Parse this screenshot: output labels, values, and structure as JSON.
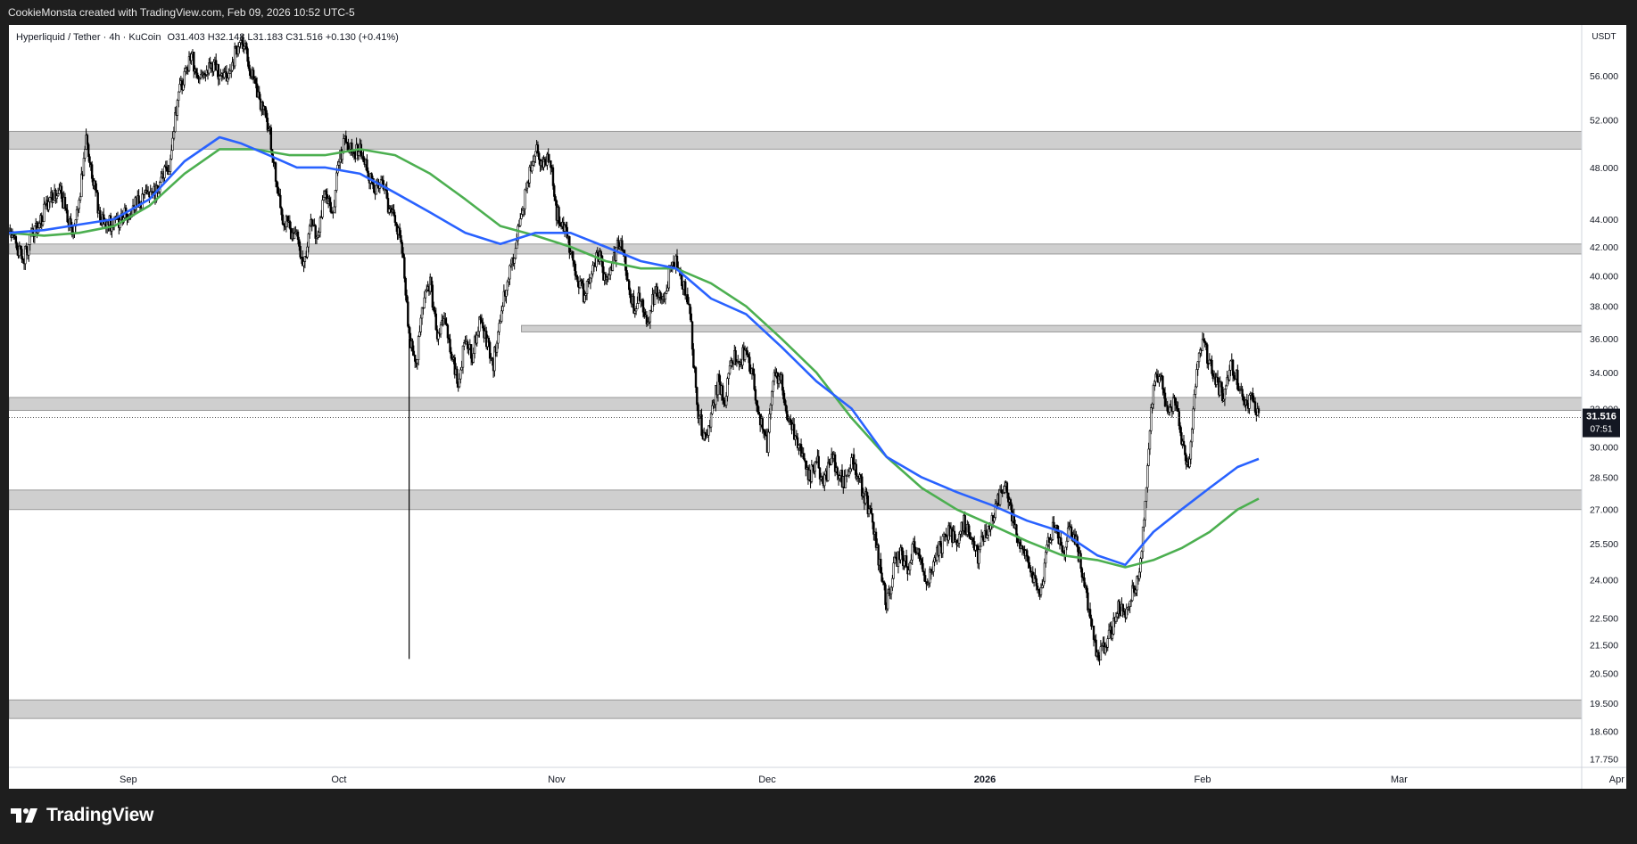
{
  "header": {
    "credit": "CookieMonsta created with TradingView.com, Feb 09, 2026 10:52 UTC-5"
  },
  "symbol": {
    "name": "Hyperliquid / Tether · 4h · KuCoin",
    "ohlc": "O31.403  H32.148  L31.183  C31.516  +0.130 (+0.41%)"
  },
  "brand": {
    "name": "TradingView"
  },
  "chart_data": {
    "type": "line",
    "series_kind": "candlestick-price",
    "currency_label": "USDT",
    "scale": "log",
    "ylim": [
      17.5,
      61.0
    ],
    "y_ticks": [
      17.75,
      18.6,
      19.5,
      20.5,
      21.5,
      22.5,
      24.0,
      25.5,
      27.0,
      28.5,
      30.0,
      32.0,
      34.0,
      36.0,
      38.0,
      40.0,
      42.0,
      44.0,
      48.0,
      52.0,
      56.0
    ],
    "y_tick_labels": [
      "17.750",
      "18.600",
      "19.500",
      "20.500",
      "21.500",
      "22.500",
      "24.000",
      "25.500",
      "27.000",
      "28.500",
      "30.000",
      "32.000",
      "34.000",
      "36.000",
      "38.000",
      "40.000",
      "42.000",
      "44.000",
      "48.000",
      "52.000",
      "56.000"
    ],
    "x_range_days": [
      -5,
      219
    ],
    "x_ticks": [
      {
        "day": 12,
        "label": "Sep"
      },
      {
        "day": 42,
        "label": "Oct"
      },
      {
        "day": 73,
        "label": "Nov"
      },
      {
        "day": 103,
        "label": "Dec"
      },
      {
        "day": 134,
        "label": "2026",
        "bold": true
      },
      {
        "day": 165,
        "label": "Feb"
      },
      {
        "day": 193,
        "label": "Mar"
      },
      {
        "day": 224,
        "label": "Apr"
      }
    ],
    "price_path": [
      [
        -5,
        43.0
      ],
      [
        -3,
        41.2
      ],
      [
        -1,
        43.5
      ],
      [
        0,
        44.5
      ],
      [
        2,
        46.5
      ],
      [
        4,
        43.0
      ],
      [
        5,
        45.5
      ],
      [
        6,
        50.5
      ],
      [
        7,
        47.0
      ],
      [
        8,
        44.0
      ],
      [
        10,
        43.5
      ],
      [
        12,
        44.5
      ],
      [
        14,
        45.5
      ],
      [
        16,
        46.0
      ],
      [
        18,
        48.5
      ],
      [
        19,
        54.0
      ],
      [
        21,
        58.0
      ],
      [
        22,
        55.5
      ],
      [
        24,
        57.0
      ],
      [
        26,
        55.5
      ],
      [
        28,
        60.0
      ],
      [
        29,
        57.5
      ],
      [
        30,
        55.0
      ],
      [
        32,
        51.5
      ],
      [
        33,
        47.0
      ],
      [
        34,
        44.0
      ],
      [
        36,
        42.5
      ],
      [
        37,
        40.5
      ],
      [
        38,
        44.0
      ],
      [
        39,
        42.5
      ],
      [
        40,
        46.0
      ],
      [
        41,
        44.0
      ],
      [
        42,
        48.5
      ],
      [
        43,
        50.5
      ],
      [
        44,
        49.0
      ],
      [
        45,
        49.5
      ],
      [
        46,
        48.0
      ],
      [
        47,
        46.0
      ],
      [
        48,
        47.5
      ],
      [
        49,
        45.0
      ],
      [
        50,
        44.0
      ],
      [
        51,
        42.0
      ],
      [
        52,
        36.0
      ],
      [
        53,
        34.5
      ],
      [
        54,
        38.0
      ],
      [
        55,
        39.5
      ],
      [
        56,
        36.0
      ],
      [
        57,
        37.5
      ],
      [
        58,
        35.0
      ],
      [
        59,
        33.5
      ],
      [
        60,
        36.0
      ],
      [
        61,
        35.0
      ],
      [
        62,
        37.0
      ],
      [
        63,
        36.0
      ],
      [
        64,
        34.5
      ],
      [
        65,
        37.5
      ],
      [
        66,
        39.5
      ],
      [
        67,
        41.5
      ],
      [
        68,
        44.5
      ],
      [
        69,
        47.0
      ],
      [
        70,
        49.5
      ],
      [
        71,
        48.0
      ],
      [
        72,
        49.0
      ],
      [
        73,
        44.5
      ],
      [
        74,
        43.5
      ],
      [
        75,
        41.5
      ],
      [
        76,
        40.0
      ],
      [
        77,
        38.5
      ],
      [
        78,
        40.5
      ],
      [
        79,
        41.5
      ],
      [
        80,
        39.5
      ],
      [
        81,
        41.0
      ],
      [
        82,
        42.5
      ],
      [
        83,
        40.0
      ],
      [
        84,
        38.0
      ],
      [
        85,
        38.5
      ],
      [
        86,
        37.0
      ],
      [
        87,
        39.0
      ],
      [
        88,
        38.5
      ],
      [
        89,
        40.0
      ],
      [
        90,
        41.0
      ],
      [
        91,
        39.5
      ],
      [
        92,
        37.5
      ],
      [
        93,
        32.0
      ],
      [
        94,
        30.5
      ],
      [
        95,
        31.5
      ],
      [
        96,
        33.5
      ],
      [
        97,
        32.5
      ],
      [
        98,
        35.0
      ],
      [
        99,
        34.5
      ],
      [
        100,
        35.5
      ],
      [
        101,
        33.5
      ],
      [
        102,
        31.5
      ],
      [
        103,
        30.0
      ],
      [
        104,
        34.0
      ],
      [
        105,
        33.5
      ],
      [
        106,
        31.5
      ],
      [
        107,
        30.5
      ],
      [
        108,
        29.5
      ],
      [
        109,
        28.5
      ],
      [
        110,
        29.5
      ],
      [
        111,
        28.0
      ],
      [
        112,
        29.5
      ],
      [
        113,
        29.0
      ],
      [
        114,
        28.0
      ],
      [
        115,
        29.5
      ],
      [
        116,
        28.5
      ],
      [
        117,
        27.5
      ],
      [
        118,
        26.5
      ],
      [
        119,
        24.5
      ],
      [
        120,
        23.0
      ],
      [
        121,
        24.5
      ],
      [
        122,
        25.0
      ],
      [
        123,
        24.5
      ],
      [
        124,
        25.5
      ],
      [
        125,
        24.5
      ],
      [
        126,
        24.0
      ],
      [
        127,
        25.0
      ],
      [
        128,
        25.5
      ],
      [
        129,
        26.0
      ],
      [
        130,
        25.5
      ],
      [
        131,
        26.5
      ],
      [
        132,
        25.5
      ],
      [
        133,
        25.0
      ],
      [
        134,
        26.0
      ],
      [
        135,
        26.5
      ],
      [
        136,
        27.5
      ],
      [
        137,
        28.0
      ],
      [
        138,
        26.5
      ],
      [
        139,
        25.5
      ],
      [
        140,
        25.0
      ],
      [
        141,
        24.0
      ],
      [
        142,
        23.5
      ],
      [
        143,
        25.5
      ],
      [
        144,
        26.5
      ],
      [
        145,
        25.0
      ],
      [
        146,
        26.0
      ],
      [
        147,
        25.5
      ],
      [
        148,
        24.0
      ],
      [
        149,
        22.5
      ],
      [
        150,
        21.0
      ],
      [
        151,
        21.5
      ],
      [
        152,
        22.0
      ],
      [
        153,
        23.0
      ],
      [
        154,
        22.5
      ],
      [
        155,
        23.5
      ],
      [
        156,
        24.0
      ],
      [
        157,
        28.0
      ],
      [
        158,
        33.5
      ],
      [
        159,
        34.0
      ],
      [
        160,
        31.5
      ],
      [
        161,
        32.5
      ],
      [
        162,
        30.5
      ],
      [
        163,
        29.0
      ],
      [
        164,
        33.5
      ],
      [
        165,
        36.0
      ],
      [
        166,
        34.5
      ],
      [
        167,
        33.5
      ],
      [
        168,
        32.5
      ],
      [
        169,
        34.5
      ],
      [
        170,
        33.5
      ],
      [
        171,
        32.0
      ],
      [
        172,
        32.5
      ],
      [
        173,
        31.5
      ]
    ],
    "spike": {
      "day": 52,
      "low": 21.0
    },
    "ma_fast": {
      "name": "blue moving average",
      "color": "#2962ff",
      "points": [
        [
          -5,
          43.0
        ],
        [
          0,
          43.2
        ],
        [
          5,
          43.6
        ],
        [
          10,
          44.0
        ],
        [
          15,
          45.5
        ],
        [
          20,
          48.5
        ],
        [
          25,
          50.5
        ],
        [
          28,
          50.0
        ],
        [
          32,
          49.0
        ],
        [
          36,
          48.0
        ],
        [
          40,
          48.0
        ],
        [
          45,
          47.5
        ],
        [
          50,
          46.0
        ],
        [
          55,
          44.5
        ],
        [
          60,
          43.0
        ],
        [
          65,
          42.2
        ],
        [
          70,
          43.0
        ],
        [
          75,
          43.0
        ],
        [
          80,
          42.0
        ],
        [
          85,
          41.0
        ],
        [
          90,
          40.5
        ],
        [
          95,
          38.5
        ],
        [
          100,
          37.5
        ],
        [
          105,
          35.5
        ],
        [
          110,
          33.5
        ],
        [
          115,
          32.0
        ],
        [
          120,
          29.5
        ],
        [
          125,
          28.5
        ],
        [
          130,
          27.8
        ],
        [
          135,
          27.2
        ],
        [
          140,
          26.5
        ],
        [
          145,
          26.0
        ],
        [
          150,
          25.0
        ],
        [
          154,
          24.6
        ],
        [
          158,
          26.0
        ],
        [
          162,
          27.0
        ],
        [
          166,
          28.0
        ],
        [
          170,
          29.0
        ],
        [
          173,
          29.4
        ]
      ]
    },
    "ma_slow": {
      "name": "green moving average",
      "color": "#4caf50",
      "points": [
        [
          -5,
          43.0
        ],
        [
          0,
          42.8
        ],
        [
          5,
          43.0
        ],
        [
          10,
          43.5
        ],
        [
          15,
          45.0
        ],
        [
          20,
          47.5
        ],
        [
          25,
          49.5
        ],
        [
          30,
          49.5
        ],
        [
          35,
          49.0
        ],
        [
          40,
          49.0
        ],
        [
          45,
          49.5
        ],
        [
          50,
          49.0
        ],
        [
          55,
          47.5
        ],
        [
          60,
          45.5
        ],
        [
          65,
          43.5
        ],
        [
          70,
          42.8
        ],
        [
          75,
          42.0
        ],
        [
          80,
          41.0
        ],
        [
          85,
          40.5
        ],
        [
          90,
          40.5
        ],
        [
          95,
          39.5
        ],
        [
          100,
          38.0
        ],
        [
          105,
          36.0
        ],
        [
          110,
          34.0
        ],
        [
          115,
          31.5
        ],
        [
          120,
          29.5
        ],
        [
          125,
          28.0
        ],
        [
          130,
          27.0
        ],
        [
          135,
          26.3
        ],
        [
          140,
          25.6
        ],
        [
          145,
          25.0
        ],
        [
          150,
          24.8
        ],
        [
          154,
          24.5
        ],
        [
          158,
          24.8
        ],
        [
          162,
          25.3
        ],
        [
          166,
          26.0
        ],
        [
          170,
          27.0
        ],
        [
          173,
          27.5
        ]
      ]
    },
    "zones": [
      {
        "low": 49.5,
        "high": 51.0,
        "from_day": -5
      },
      {
        "low": 41.5,
        "high": 42.2,
        "from_day": -5
      },
      {
        "low": 36.4,
        "high": 36.8,
        "from_day": 68
      },
      {
        "low": 31.9,
        "high": 32.6,
        "from_day": -5
      },
      {
        "low": 27.0,
        "high": 27.9,
        "from_day": -5
      },
      {
        "low": 19.0,
        "high": 19.6,
        "from_day": -5
      }
    ],
    "last_price": {
      "value": 31.516,
      "label": "31.516",
      "countdown": "07:51"
    }
  }
}
